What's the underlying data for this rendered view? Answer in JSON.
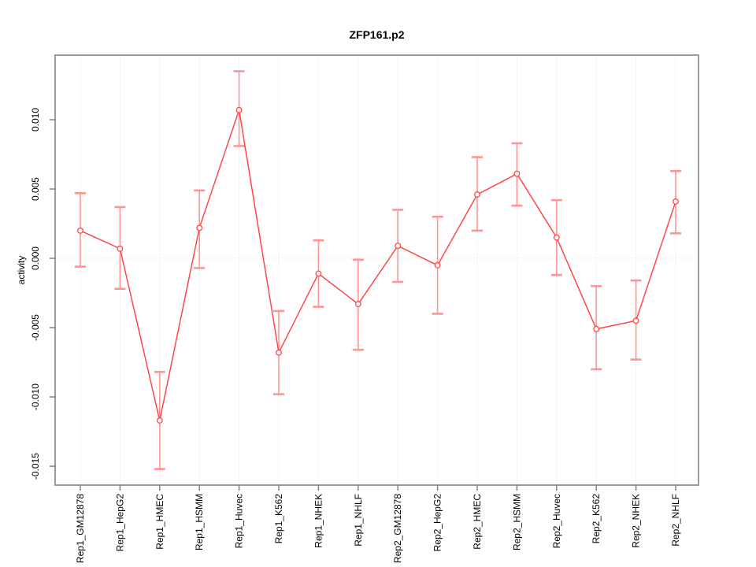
{
  "title": "ZFP161.p2",
  "y_axis_title": "activity",
  "chart_data": {
    "type": "line",
    "title": "ZFP161.p2",
    "xlabel": "",
    "ylabel": "activity",
    "categories": [
      "Rep1_GM12878",
      "Rep1_HepG2",
      "Rep1_HMEC",
      "Rep1_HSMM",
      "Rep1_Huvec",
      "Rep1_K562",
      "Rep1_NHEK",
      "Rep1_NHLF",
      "Rep2_GM12878",
      "Rep2_HepG2",
      "Rep2_HMEC",
      "Rep2_HSMM",
      "Rep2_Huvec",
      "Rep2_K562",
      "Rep2_NHEK",
      "Rep2_NHLF"
    ],
    "values": [
      0.002,
      0.0007,
      -0.0117,
      0.0022,
      0.0107,
      -0.0068,
      -0.0011,
      -0.0033,
      0.0009,
      -0.0005,
      0.0046,
      0.0061,
      0.0015,
      -0.0051,
      -0.0045,
      0.0041
    ],
    "error_low": [
      -0.0006,
      -0.0022,
      -0.0152,
      -0.0007,
      0.0081,
      -0.0098,
      -0.0035,
      -0.0066,
      -0.0017,
      -0.004,
      0.002,
      0.0038,
      -0.0012,
      -0.008,
      -0.0073,
      0.0018
    ],
    "error_high": [
      0.0047,
      0.0037,
      -0.0082,
      0.0049,
      0.0135,
      -0.0038,
      0.0013,
      -0.0001,
      0.0035,
      0.003,
      0.0073,
      0.0083,
      0.0042,
      -0.002,
      -0.0016,
      0.0063
    ],
    "yticks": [
      0.01,
      0.005,
      0.0,
      -0.005,
      -0.01,
      -0.015
    ],
    "ytick_labels": [
      "0.010",
      "0.005",
      "0.000",
      "-0.005",
      "-0.010",
      "-0.015"
    ],
    "ylim": [
      -0.01636,
      0.01466
    ],
    "zero_line": true,
    "grid": "vertical-dotted",
    "legend": "none",
    "colors": {
      "series": "#ff4747",
      "error_bar": "#ff9494",
      "point_fill": "#ffffff",
      "grid": "#dadada",
      "zero_line": "#cfcfcf",
      "box": "#9b9b9b",
      "tick": "#808080",
      "text": "#000000"
    }
  }
}
